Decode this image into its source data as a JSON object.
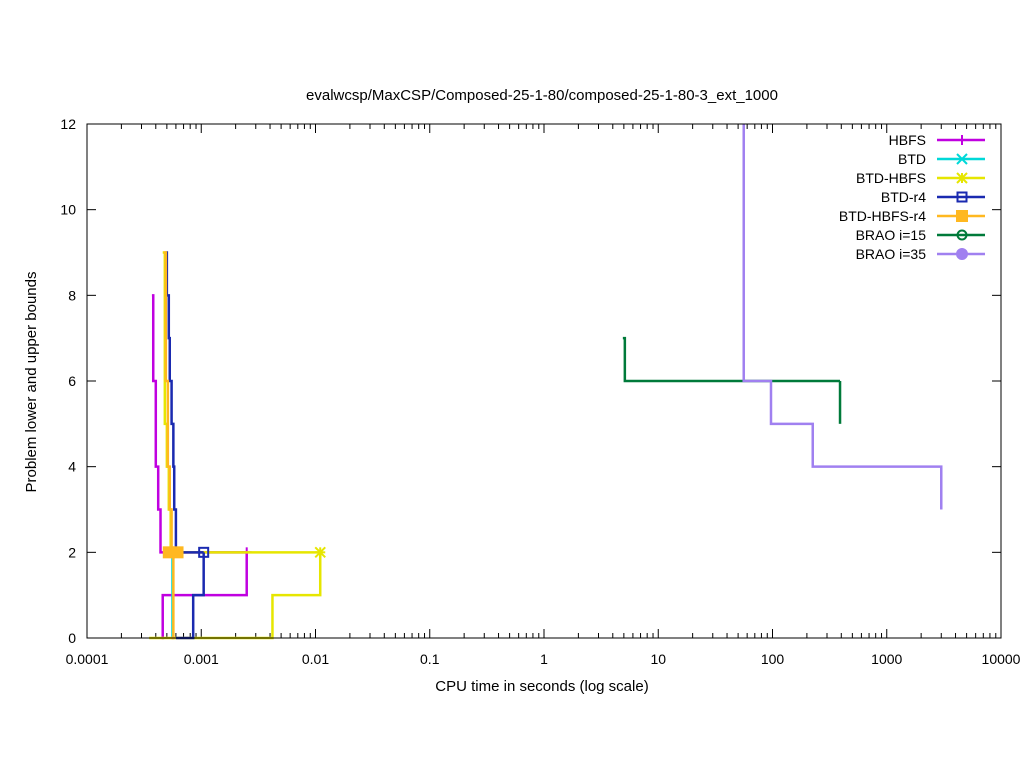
{
  "chart_data": {
    "type": "line",
    "title": "evalwcsp/MaxCSP/Composed-25-1-80/composed-25-1-80-3_ext_1000",
    "xlabel": "CPU time in seconds (log scale)",
    "ylabel": "Problem lower and upper bounds",
    "xscale": "log",
    "xlim": [
      0.0001,
      10000
    ],
    "ylim": [
      0,
      12
    ],
    "x_ticks": [
      0.0001,
      0.001,
      0.01,
      0.1,
      1,
      10,
      100,
      1000,
      10000
    ],
    "x_tick_labels": [
      "0.0001",
      "0.001",
      "0.01",
      "0.1",
      "1",
      "10",
      "100",
      "1000",
      "10000"
    ],
    "y_ticks": [
      0,
      2,
      4,
      6,
      8,
      10,
      12
    ],
    "y_tick_labels": [
      "0",
      "2",
      "4",
      "6",
      "8",
      "10",
      "12"
    ],
    "legend_position": "top-right",
    "step": true,
    "series": [
      {
        "name": "HBFS",
        "color": "#c000e0",
        "marker": "plus",
        "upper": [
          [
            0.00037,
            8
          ],
          [
            0.00038,
            6
          ],
          [
            0.0004,
            4
          ],
          [
            0.00042,
            3
          ],
          [
            0.00044,
            2
          ],
          [
            0.0025,
            2
          ]
        ],
        "lower": [
          [
            0.00045,
            0
          ],
          [
            0.00046,
            1
          ],
          [
            0.0024,
            1
          ],
          [
            0.0025,
            2
          ]
        ],
        "markers": [
          [
            0.0025,
            2
          ]
        ]
      },
      {
        "name": "BTD",
        "color": "#00d8d8",
        "marker": "x",
        "upper": [
          [
            0.00055,
            2
          ],
          [
            0.00057,
            2
          ]
        ],
        "lower": [
          [
            0.00055,
            0
          ],
          [
            0.00056,
            2
          ]
        ],
        "markers": []
      },
      {
        "name": "BTD-HBFS",
        "color": "#e6e600",
        "marker": "star",
        "upper": [
          [
            0.00046,
            9
          ],
          [
            0.00048,
            5
          ],
          [
            0.0005,
            4
          ],
          [
            0.00052,
            3
          ],
          [
            0.00054,
            2
          ],
          [
            0.011,
            2
          ]
        ],
        "lower": [
          [
            0.00035,
            0
          ],
          [
            0.0042,
            0
          ],
          [
            0.0042,
            1
          ],
          [
            0.011,
            1
          ],
          [
            0.011,
            2
          ]
        ],
        "markers": [
          [
            0.011,
            2
          ]
        ]
      },
      {
        "name": "BTD-r4",
        "color": "#1a2ab0",
        "marker": "square-open",
        "upper": [
          [
            0.00049,
            9
          ],
          [
            0.0005,
            8
          ],
          [
            0.00052,
            7
          ],
          [
            0.00053,
            6
          ],
          [
            0.00055,
            5
          ],
          [
            0.00057,
            4
          ],
          [
            0.00058,
            3
          ],
          [
            0.0006,
            2
          ],
          [
            0.00105,
            2
          ]
        ],
        "lower": [
          [
            0.0006,
            0
          ],
          [
            0.00085,
            0
          ],
          [
            0.00085,
            1
          ],
          [
            0.00105,
            1
          ],
          [
            0.00105,
            2
          ]
        ],
        "markers": [
          [
            0.00105,
            2
          ]
        ]
      },
      {
        "name": "BTD-HBFS-r4",
        "color": "#ffb820",
        "marker": "square-filled",
        "upper": [
          [
            0.00047,
            9
          ],
          [
            0.00049,
            6
          ],
          [
            0.00051,
            4
          ],
          [
            0.00053,
            3
          ],
          [
            0.00055,
            2
          ],
          [
            0.00062,
            2
          ]
        ],
        "lower": [
          [
            0.00055,
            0
          ],
          [
            0.00057,
            2
          ],
          [
            0.00062,
            2
          ]
        ],
        "markers": [
          [
            0.00052,
            2
          ],
          [
            0.00062,
            2
          ]
        ]
      },
      {
        "name": "BRAO i=15",
        "color": "#007a3a",
        "marker": "circle-open",
        "upper": [
          [
            4.9,
            7
          ],
          [
            5.1,
            6
          ],
          [
            390,
            6
          ]
        ],
        "lower": [
          [
            390,
            5
          ],
          [
            390,
            6
          ]
        ],
        "markers": []
      },
      {
        "name": "BRAO i=35",
        "color": "#a080f0",
        "marker": "circle-filled",
        "upper": [
          [
            56,
            12
          ],
          [
            56,
            6
          ],
          [
            97,
            6
          ],
          [
            97,
            5
          ],
          [
            225,
            5
          ],
          [
            225,
            4
          ],
          [
            3000,
            4
          ],
          [
            3000,
            3
          ]
        ],
        "lower": [],
        "markers": []
      }
    ]
  }
}
